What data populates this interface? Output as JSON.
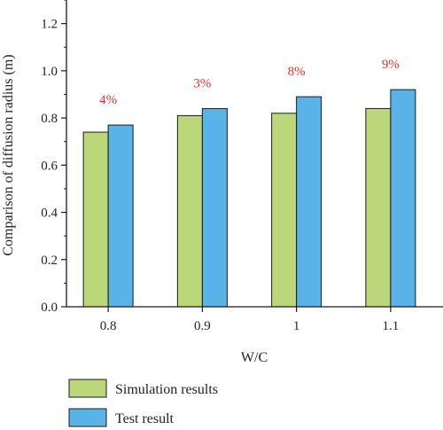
{
  "chart_data": {
    "type": "bar",
    "title": "",
    "xlabel": "W/C",
    "ylabel": "Comparison of diffusion radius (m)",
    "categories": [
      "0.8",
      "0.9",
      "1",
      "1.1"
    ],
    "series": [
      {
        "name": "Simulation results",
        "values": [
          0.74,
          0.81,
          0.82,
          0.84
        ],
        "color": "#bcd67a"
      },
      {
        "name": "Test result",
        "values": [
          0.77,
          0.84,
          0.89,
          0.92
        ],
        "color": "#5ab3e8"
      }
    ],
    "bar_labels": [
      "4%",
      "3%",
      "8%",
      "9%"
    ],
    "bar_label_color": "#e8342c",
    "ylim": [
      0,
      1.3
    ],
    "yticks": [
      "0.0",
      "0.2",
      "0.4",
      "0.6",
      "0.8",
      "1.0",
      "1.2"
    ],
    "grid": false,
    "legend_position": "bottom-left"
  }
}
